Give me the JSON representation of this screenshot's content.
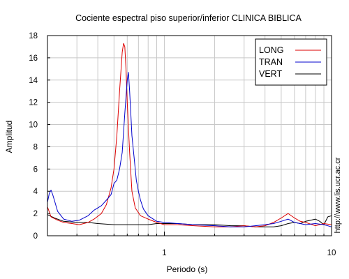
{
  "chart_data": {
    "type": "line",
    "title": "Cociente espectral piso superior/inferior  CLINICA BIBLICA",
    "xlabel": "Periodo (s)",
    "ylabel": "Amplitud",
    "xscale": "log",
    "xlim": [
      0.2,
      10
    ],
    "ylim": [
      0,
      18
    ],
    "x_ticks": [
      1,
      10
    ],
    "x_tick_labels": [
      "1",
      "10"
    ],
    "y_ticks": [
      0,
      2,
      4,
      6,
      8,
      10,
      12,
      14,
      16,
      18
    ],
    "y_tick_labels": [
      "0",
      "2",
      "4",
      "6",
      "8",
      "10",
      "12",
      "14",
      "16",
      "18"
    ],
    "grid": true,
    "legend_position": "top-right",
    "series": [
      {
        "name": "LONG",
        "color": "#dd0000",
        "x": [
          0.2,
          0.21,
          0.23,
          0.25,
          0.28,
          0.31,
          0.35,
          0.38,
          0.42,
          0.45,
          0.48,
          0.5,
          0.52,
          0.54,
          0.56,
          0.57,
          0.58,
          0.59,
          0.6,
          0.62,
          0.64,
          0.67,
          0.72,
          0.8,
          0.9,
          1.0,
          1.2,
          1.5,
          2.0,
          2.5,
          3.0,
          3.5,
          4.0,
          4.5,
          5.0,
          5.5,
          6.0,
          6.5,
          7.0,
          8.0,
          9.0,
          10.0
        ],
        "y": [
          2.6,
          1.7,
          1.4,
          1.2,
          1.1,
          1.0,
          1.2,
          1.5,
          2.0,
          2.8,
          4.3,
          6.0,
          9.0,
          13.0,
          16.5,
          17.3,
          17.0,
          15.0,
          12.0,
          7.5,
          4.0,
          2.5,
          1.8,
          1.5,
          1.2,
          1.0,
          1.0,
          0.9,
          0.8,
          0.8,
          0.9,
          0.8,
          0.9,
          1.2,
          1.6,
          2.0,
          1.6,
          1.3,
          1.2,
          0.9,
          1.1,
          1.0
        ]
      },
      {
        "name": "TRAN",
        "color": "#0000cc",
        "x": [
          0.2,
          0.205,
          0.21,
          0.215,
          0.22,
          0.23,
          0.25,
          0.28,
          0.31,
          0.35,
          0.38,
          0.42,
          0.45,
          0.48,
          0.5,
          0.52,
          0.54,
          0.56,
          0.58,
          0.6,
          0.61,
          0.62,
          0.63,
          0.64,
          0.66,
          0.68,
          0.7,
          0.72,
          0.75,
          0.8,
          0.9,
          1.0,
          1.2,
          1.5,
          2.0,
          2.5,
          3.0,
          3.5,
          4.0,
          4.5,
          5.0,
          5.5,
          6.0,
          7.0,
          8.0,
          9.0,
          10.0
        ],
        "y": [
          3.0,
          3.8,
          4.1,
          3.7,
          3.2,
          2.2,
          1.5,
          1.3,
          1.4,
          1.8,
          2.3,
          2.7,
          3.2,
          3.7,
          4.7,
          5.0,
          6.0,
          7.5,
          11.0,
          14.0,
          14.7,
          13.0,
          11.0,
          9.0,
          7.0,
          5.0,
          4.0,
          3.2,
          2.4,
          1.8,
          1.3,
          1.2,
          1.1,
          1.0,
          0.9,
          0.8,
          0.8,
          0.9,
          1.0,
          1.1,
          1.3,
          1.5,
          1.2,
          1.0,
          1.1,
          1.0,
          0.8
        ]
      },
      {
        "name": "VERT",
        "color": "#000000",
        "x": [
          0.2,
          0.22,
          0.25,
          0.3,
          0.35,
          0.4,
          0.5,
          0.6,
          0.7,
          0.8,
          0.9,
          1.0,
          1.2,
          1.5,
          2.0,
          2.5,
          3.0,
          3.5,
          4.0,
          4.5,
          5.0,
          5.5,
          6.0,
          6.5,
          7.0,
          7.5,
          8.0,
          8.5,
          9.0,
          9.5,
          10.0
        ],
        "y": [
          1.9,
          1.6,
          1.3,
          1.2,
          1.2,
          1.1,
          1.0,
          1.0,
          1.0,
          1.0,
          1.1,
          1.1,
          1.1,
          1.0,
          1.0,
          0.9,
          0.9,
          0.8,
          0.8,
          0.8,
          0.9,
          1.1,
          1.2,
          1.1,
          1.3,
          1.4,
          1.5,
          1.3,
          1.0,
          1.7,
          1.8
        ]
      }
    ]
  },
  "side_text": "http://www.lis.ucr.ac.cr"
}
